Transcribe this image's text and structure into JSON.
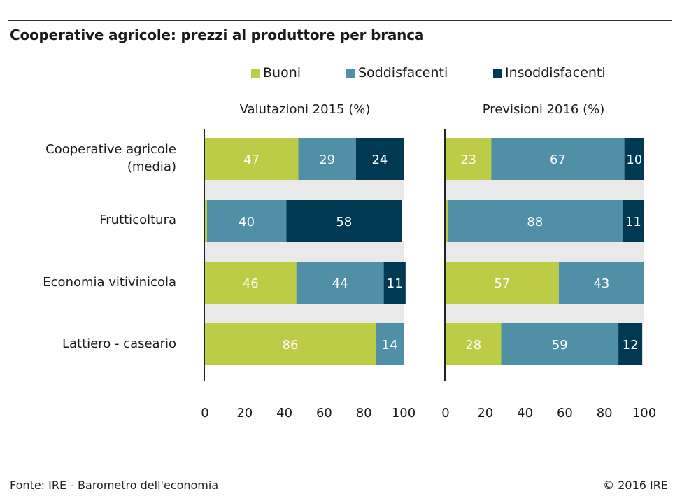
{
  "title": "Cooperative agricole: prezzi al produttore per branca",
  "legend": [
    {
      "label": "Buoni",
      "color": "#bccc46"
    },
    {
      "label": "Soddisfacenti",
      "color": "#4f90a6"
    },
    {
      "label": "Insoddisfacenti",
      "color": "#003a52"
    }
  ],
  "footer": {
    "source": "Fonte: IRE - Barometro dell'economia",
    "copyright": "© 2016 IRE"
  },
  "chart_data": [
    {
      "type": "bar",
      "orientation": "horizontal",
      "stacked": true,
      "title": "Valutazioni 2015 (%)",
      "categories": [
        "Cooperative agricole\n(media)",
        "Frutticoltura",
        "Economia vitivinicola",
        "Lattiero - caseario"
      ],
      "series": [
        {
          "name": "Buoni",
          "values": [
            47,
            1,
            46,
            86
          ],
          "labels": [
            "47",
            "",
            "46",
            "86"
          ]
        },
        {
          "name": "Soddisfacenti",
          "values": [
            29,
            40,
            44,
            14
          ],
          "labels": [
            "29",
            "40",
            "44",
            "14"
          ]
        },
        {
          "name": "Insoddisfacenti",
          "values": [
            24,
            58,
            11,
            0
          ],
          "labels": [
            "24",
            "58",
            "11",
            ""
          ]
        }
      ],
      "xlim": [
        0,
        100
      ],
      "xticks": [
        "0",
        "20",
        "40",
        "60",
        "80",
        "100"
      ],
      "grid": false,
      "legend_position": "top"
    },
    {
      "type": "bar",
      "orientation": "horizontal",
      "stacked": true,
      "title": "Previsioni 2016 (%)",
      "categories": [
        "Cooperative agricole\n(media)",
        "Frutticoltura",
        "Economia vitivinicola",
        "Lattiero - caseario"
      ],
      "series": [
        {
          "name": "Buoni",
          "values": [
            23,
            1,
            57,
            28
          ],
          "labels": [
            "23",
            "",
            "57",
            "28"
          ]
        },
        {
          "name": "Soddisfacenti",
          "values": [
            67,
            88,
            43,
            59
          ],
          "labels": [
            "67",
            "88",
            "43",
            "59"
          ]
        },
        {
          "name": "Insoddisfacenti",
          "values": [
            10,
            11,
            0,
            12
          ],
          "labels": [
            "10",
            "11",
            "",
            "12"
          ]
        }
      ],
      "xlim": [
        0,
        100
      ],
      "xticks": [
        "0",
        "20",
        "40",
        "60",
        "80",
        "100"
      ],
      "grid": false,
      "legend_position": "top"
    }
  ]
}
